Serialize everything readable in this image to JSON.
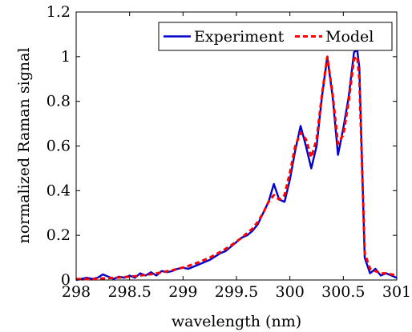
{
  "chart_data": {
    "type": "line",
    "xlabel": "wavelength (nm)",
    "ylabel": "normalized Raman signal",
    "xlim": [
      298,
      301
    ],
    "ylim": [
      0,
      1.2
    ],
    "xticks": [
      "298",
      "298.5",
      "299",
      "299.5",
      "300",
      "300.5",
      "301"
    ],
    "yticks": [
      "0",
      "0.2",
      "0.4",
      "0.6",
      "0.8",
      "1",
      "1.2"
    ],
    "grid": false,
    "legend_position": "top-right",
    "series": [
      {
        "name": "Experiment",
        "color": "#0000cc",
        "style": "solid",
        "x": [
          298.0,
          298.05,
          298.1,
          298.15,
          298.2,
          298.25,
          298.3,
          298.35,
          298.4,
          298.45,
          298.5,
          298.55,
          298.6,
          298.65,
          298.7,
          298.75,
          298.8,
          298.85,
          298.9,
          298.95,
          299.0,
          299.05,
          299.1,
          299.15,
          299.2,
          299.25,
          299.3,
          299.35,
          299.4,
          299.45,
          299.5,
          299.55,
          299.6,
          299.65,
          299.7,
          299.75,
          299.8,
          299.85,
          299.9,
          299.95,
          300.0,
          300.05,
          300.1,
          300.15,
          300.2,
          300.25,
          300.3,
          300.35,
          300.4,
          300.45,
          300.5,
          300.55,
          300.6,
          300.63,
          300.65,
          300.7,
          300.75,
          300.8,
          300.85,
          300.9,
          300.95,
          301.0
        ],
        "y": [
          0.0,
          0.005,
          0.01,
          0.005,
          0.01,
          0.025,
          0.015,
          0.005,
          0.015,
          0.01,
          0.02,
          0.01,
          0.03,
          0.02,
          0.035,
          0.02,
          0.04,
          0.035,
          0.04,
          0.05,
          0.055,
          0.05,
          0.06,
          0.07,
          0.08,
          0.09,
          0.105,
          0.12,
          0.13,
          0.15,
          0.17,
          0.19,
          0.2,
          0.22,
          0.25,
          0.3,
          0.35,
          0.43,
          0.36,
          0.35,
          0.45,
          0.58,
          0.69,
          0.6,
          0.5,
          0.6,
          0.82,
          1.0,
          0.82,
          0.56,
          0.68,
          0.82,
          1.02,
          1.03,
          0.95,
          0.1,
          0.03,
          0.05,
          0.02,
          0.03,
          0.02,
          0.01
        ]
      },
      {
        "name": "Model",
        "color": "#ff0000",
        "style": "dashed",
        "x": [
          298.0,
          298.05,
          298.1,
          298.15,
          298.2,
          298.25,
          298.3,
          298.35,
          298.4,
          298.45,
          298.5,
          298.55,
          298.6,
          298.65,
          298.7,
          298.75,
          298.8,
          298.85,
          298.9,
          298.95,
          299.0,
          299.05,
          299.1,
          299.15,
          299.2,
          299.25,
          299.3,
          299.35,
          299.4,
          299.45,
          299.5,
          299.55,
          299.6,
          299.65,
          299.7,
          299.75,
          299.8,
          299.85,
          299.9,
          299.95,
          300.0,
          300.05,
          300.1,
          300.15,
          300.2,
          300.25,
          300.3,
          300.35,
          300.4,
          300.45,
          300.5,
          300.55,
          300.6,
          300.63,
          300.65,
          300.7,
          300.75,
          300.8,
          300.85,
          300.9,
          300.95,
          301.0
        ],
        "y": [
          0.005,
          0.004,
          0.004,
          0.005,
          0.006,
          0.007,
          0.008,
          0.01,
          0.011,
          0.013,
          0.015,
          0.017,
          0.02,
          0.023,
          0.026,
          0.03,
          0.034,
          0.039,
          0.044,
          0.05,
          0.056,
          0.063,
          0.071,
          0.08,
          0.09,
          0.1,
          0.113,
          0.126,
          0.14,
          0.155,
          0.172,
          0.19,
          0.21,
          0.23,
          0.26,
          0.3,
          0.35,
          0.38,
          0.36,
          0.38,
          0.48,
          0.6,
          0.66,
          0.63,
          0.55,
          0.63,
          0.83,
          1.0,
          0.83,
          0.61,
          0.65,
          0.8,
          0.99,
          1.0,
          0.9,
          0.12,
          0.05,
          0.04,
          0.03,
          0.03,
          0.025,
          0.02
        ]
      }
    ]
  }
}
